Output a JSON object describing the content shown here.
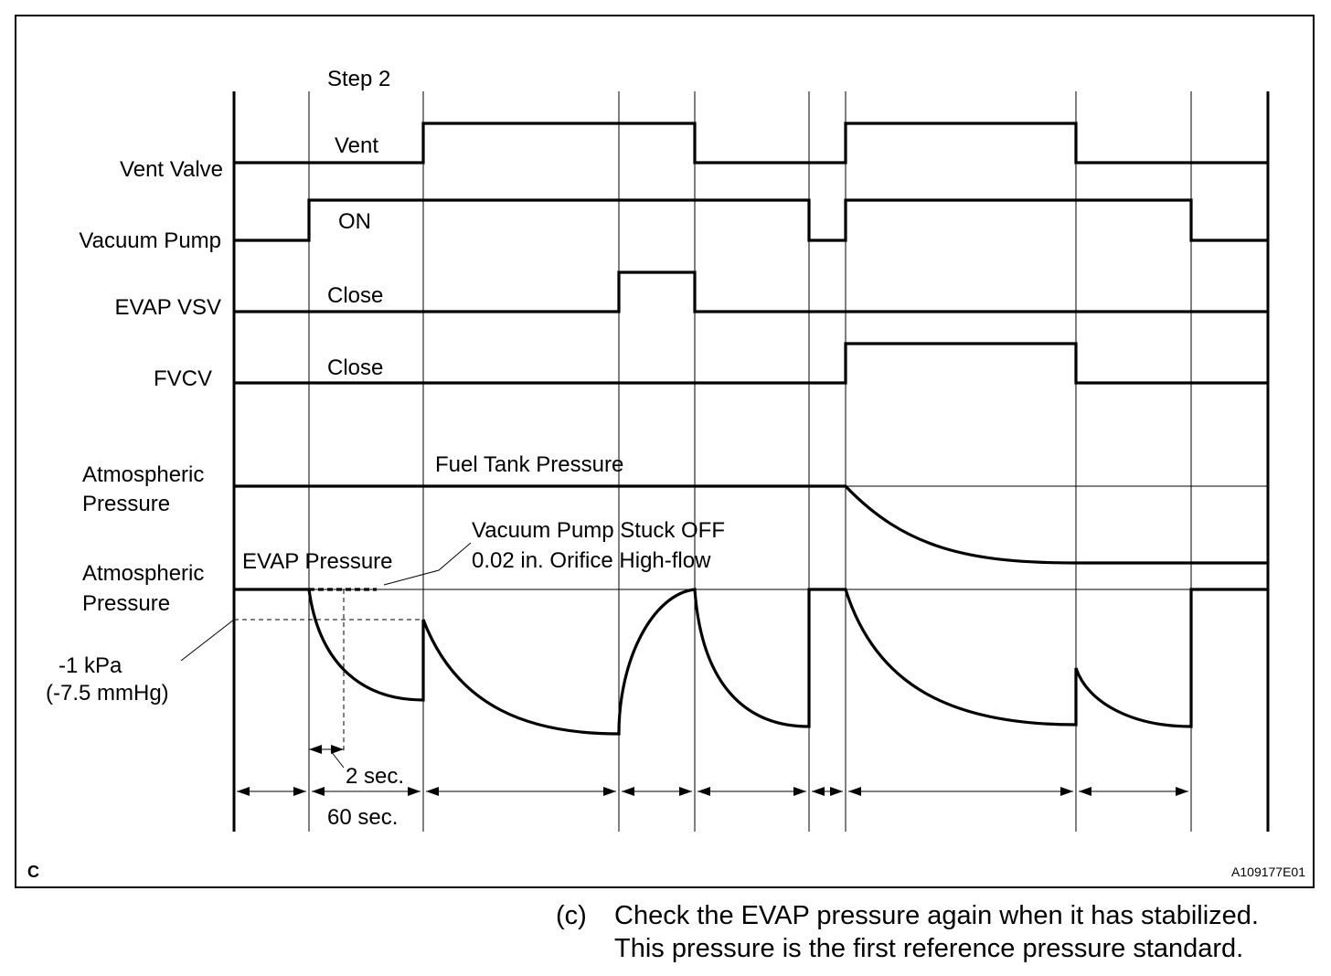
{
  "diagram": {
    "step_label": "Step 2",
    "signals": {
      "vent_valve": "Vent Valve",
      "vacuum_pump": "Vacuum Pump",
      "evap_vsv": "EVAP VSV",
      "fvcv": "FVCV",
      "atmospheric_1": [
        "Atmospheric",
        "Pressure"
      ],
      "atmospheric_2": [
        "Atmospheric",
        "Pressure"
      ]
    },
    "state_labels": {
      "vent": "Vent",
      "on": "ON",
      "close_vsv": "Close",
      "close_fvcv": "Close",
      "fuel_tank_pressure": "Fuel Tank Pressure",
      "evap_pressure": "EVAP Pressure"
    },
    "annotations": {
      "stuck_off_line1": "Vacuum Pump Stuck OFF",
      "stuck_off_line2": "0.02 in. Orifice High-flow",
      "kpa": "-1 kPa",
      "mmhg": "(-7.5 mmHg)",
      "two_sec": "2 sec.",
      "sixty_sec": "60 sec."
    },
    "corner_mark": "C",
    "figure_id": "A109177E01"
  },
  "caption": {
    "marker": "(c)",
    "line1": "Check the EVAP pressure again when it has stabilized.",
    "line2": "This pressure is the first reference pressure standard."
  }
}
